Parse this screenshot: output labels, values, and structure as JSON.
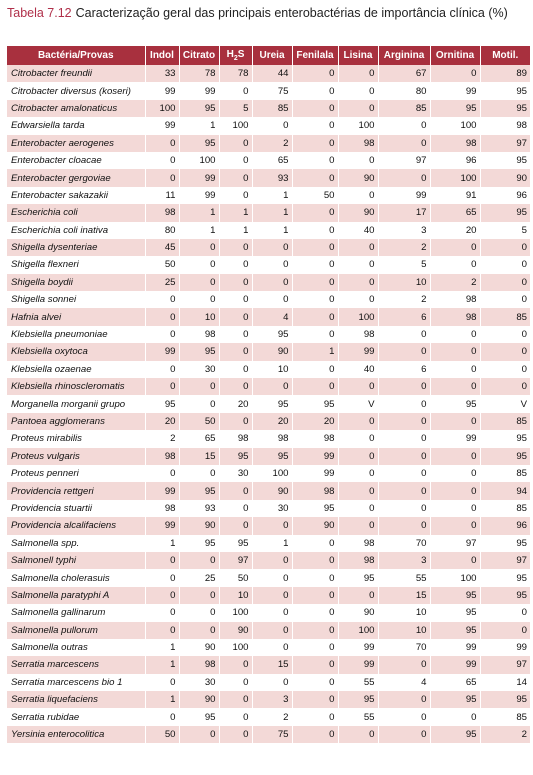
{
  "caption": {
    "label": "Tabela 7.12",
    "title": "Caracterização geral das principais enterobactérias de importância clínica (%)"
  },
  "table": {
    "headers": [
      "Bactéria/Provas",
      "Indol",
      "Citrato",
      "H",
      "Ureia",
      "Fenilala",
      "Lisina",
      "Arginina",
      "Ornitina",
      "Motil."
    ],
    "h2s_sub": "2",
    "h2s_tail": "S",
    "rows": [
      [
        "Citrobacter freundii",
        "33",
        "78",
        "78",
        "44",
        "0",
        "0",
        "67",
        "0",
        "89"
      ],
      [
        "Citrobacter diversus (koseri)",
        "99",
        "99",
        "0",
        "75",
        "0",
        "0",
        "80",
        "99",
        "95"
      ],
      [
        "Citrobacter amalonaticus",
        "100",
        "95",
        "5",
        "85",
        "0",
        "0",
        "85",
        "95",
        "95"
      ],
      [
        "Edwarsiella tarda",
        "99",
        "1",
        "100",
        "0",
        "0",
        "100",
        "0",
        "100",
        "98"
      ],
      [
        "Enterobacter aerogenes",
        "0",
        "95",
        "0",
        "2",
        "0",
        "98",
        "0",
        "98",
        "97"
      ],
      [
        "Enterobacter cloacae",
        "0",
        "100",
        "0",
        "65",
        "0",
        "0",
        "97",
        "96",
        "95"
      ],
      [
        "Enterobacter gergoviae",
        "0",
        "99",
        "0",
        "93",
        "0",
        "90",
        "0",
        "100",
        "90"
      ],
      [
        "Enterobacter sakazakii",
        "11",
        "99",
        "0",
        "1",
        "50",
        "0",
        "99",
        "91",
        "96"
      ],
      [
        "Escherichia coli",
        "98",
        "1",
        "1",
        "1",
        "0",
        "90",
        "17",
        "65",
        "95"
      ],
      [
        "Escherichia coli inativa",
        "80",
        "1",
        "1",
        "1",
        "0",
        "40",
        "3",
        "20",
        "5"
      ],
      [
        "Shigella dysenteriae",
        "45",
        "0",
        "0",
        "0",
        "0",
        "0",
        "2",
        "0",
        "0"
      ],
      [
        "Shigella flexneri",
        "50",
        "0",
        "0",
        "0",
        "0",
        "0",
        "5",
        "0",
        "0"
      ],
      [
        "Shigella boydii",
        "25",
        "0",
        "0",
        "0",
        "0",
        "0",
        "10",
        "2",
        "0"
      ],
      [
        "Shigella sonnei",
        "0",
        "0",
        "0",
        "0",
        "0",
        "0",
        "2",
        "98",
        "0"
      ],
      [
        "Hafnia alvei",
        "0",
        "10",
        "0",
        "4",
        "0",
        "100",
        "6",
        "98",
        "85"
      ],
      [
        "Klebsiella pneumoniae",
        "0",
        "98",
        "0",
        "95",
        "0",
        "98",
        "0",
        "0",
        "0"
      ],
      [
        "Klebsiella oxytoca",
        "99",
        "95",
        "0",
        "90",
        "1",
        "99",
        "0",
        "0",
        "0"
      ],
      [
        "Klebsiella ozaenae",
        "0",
        "30",
        "0",
        "10",
        "0",
        "40",
        "6",
        "0",
        "0"
      ],
      [
        "Klebsiella rhinoscleromatis",
        "0",
        "0",
        "0",
        "0",
        "0",
        "0",
        "0",
        "0",
        "0"
      ],
      [
        "Morganella morganii grupo",
        "95",
        "0",
        "20",
        "95",
        "95",
        "V",
        "0",
        "95",
        "V"
      ],
      [
        "Pantoea agglomerans",
        "20",
        "50",
        "0",
        "20",
        "20",
        "0",
        "0",
        "0",
        "85"
      ],
      [
        "Proteus mirabilis",
        "2",
        "65",
        "98",
        "98",
        "98",
        "0",
        "0",
        "99",
        "95"
      ],
      [
        "Proteus vulgaris",
        "98",
        "15",
        "95",
        "95",
        "99",
        "0",
        "0",
        "0",
        "95"
      ],
      [
        "Proteus penneri",
        "0",
        "0",
        "30",
        "100",
        "99",
        "0",
        "0",
        "0",
        "85"
      ],
      [
        "Providencia rettgeri",
        "99",
        "95",
        "0",
        "90",
        "98",
        "0",
        "0",
        "0",
        "94"
      ],
      [
        "Providencia stuartii",
        "98",
        "93",
        "0",
        "30",
        "95",
        "0",
        "0",
        "0",
        "85"
      ],
      [
        "Providencia alcalifaciens",
        "99",
        "90",
        "0",
        "0",
        "90",
        "0",
        "0",
        "0",
        "96"
      ],
      [
        "Salmonella spp.",
        "1",
        "95",
        "95",
        "1",
        "0",
        "98",
        "70",
        "97",
        "95"
      ],
      [
        "Salmonell typhi",
        "0",
        "0",
        "97",
        "0",
        "0",
        "98",
        "3",
        "0",
        "97"
      ],
      [
        "Salmonella cholerasuis",
        "0",
        "25",
        "50",
        "0",
        "0",
        "95",
        "55",
        "100",
        "95"
      ],
      [
        "Salmonella paratyphi A",
        "0",
        "0",
        "10",
        "0",
        "0",
        "0",
        "15",
        "95",
        "95"
      ],
      [
        "Salmonella gallinarum",
        "0",
        "0",
        "100",
        "0",
        "0",
        "90",
        "10",
        "95",
        "0"
      ],
      [
        "Salmonella pullorum",
        "0",
        "0",
        "90",
        "0",
        "0",
        "100",
        "10",
        "95",
        "0"
      ],
      [
        "Salmonella outras",
        "1",
        "90",
        "100",
        "0",
        "0",
        "99",
        "70",
        "99",
        "99"
      ],
      [
        "Serratia marcescens",
        "1",
        "98",
        "0",
        "15",
        "0",
        "99",
        "0",
        "99",
        "97"
      ],
      [
        "Serratia marcescens bio 1",
        "0",
        "30",
        "0",
        "0",
        "0",
        "55",
        "4",
        "65",
        "14"
      ],
      [
        "Serratia liquefaciens",
        "1",
        "90",
        "0",
        "3",
        "0",
        "95",
        "0",
        "95",
        "95"
      ],
      [
        "Serratia rubidae",
        "0",
        "95",
        "0",
        "2",
        "0",
        "55",
        "0",
        "0",
        "85"
      ],
      [
        "Yersinia enterocolitica",
        "50",
        "0",
        "0",
        "75",
        "0",
        "0",
        "0",
        "95",
        "2"
      ]
    ]
  }
}
